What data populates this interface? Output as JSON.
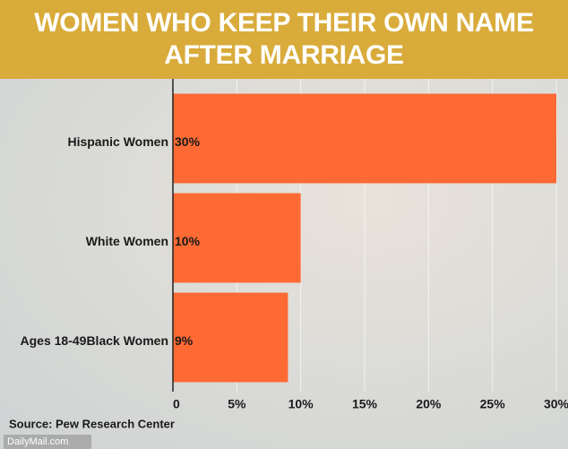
{
  "chart_data": {
    "type": "bar",
    "orientation": "horizontal",
    "title": "WOMEN WHO KEEP THEIR OWN NAME AFTER MARRIAGE",
    "categories": [
      "Hispanic Women",
      "White Women",
      "Ages 18-49Black Women"
    ],
    "values": [
      30,
      10,
      9
    ],
    "value_labels": [
      "30%",
      "10%",
      "9%"
    ],
    "color": "#fd6a34",
    "xlim": [
      0,
      30
    ],
    "xticks": [
      0,
      {
        "value": 5,
        "label": "5%"
      },
      {
        "value": 10,
        "label": "10%"
      },
      {
        "value": 15,
        "label": "15%"
      },
      {
        "value": 20,
        "label": "20%"
      },
      {
        "value": 25,
        "label": "25%"
      },
      {
        "value": 30,
        "label": "30%"
      }
    ],
    "grid": true,
    "source": "Source: Pew Research Center",
    "credit": "DailyMail.com"
  }
}
